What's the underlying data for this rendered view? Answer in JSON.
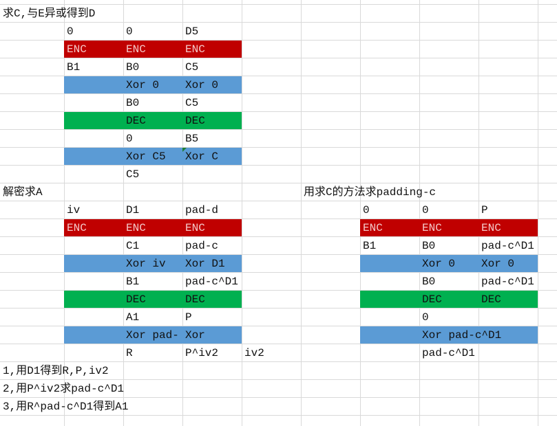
{
  "sheet": {
    "rows": [
      [
        "求C,与E异或得到D"
      ],
      [
        null,
        "0",
        "0",
        "D5"
      ],
      [
        null,
        "ENC",
        "ENC",
        "ENC"
      ],
      [
        null,
        "B1",
        "B0",
        "C5"
      ],
      [
        null,
        null,
        "Xor 0",
        "Xor 0"
      ],
      [
        null,
        null,
        "B0",
        "C5"
      ],
      [
        null,
        null,
        "DEC",
        "DEC"
      ],
      [
        null,
        null,
        "0",
        "B5"
      ],
      [
        null,
        null,
        "Xor C5",
        "Xor C"
      ],
      [
        null,
        null,
        "C5"
      ],
      [
        "解密求A",
        null,
        null,
        null,
        null,
        "用求C的方法求padding-c"
      ],
      [
        null,
        "iv",
        "D1",
        "pad-d",
        null,
        null,
        "0",
        "0",
        "P"
      ],
      [
        null,
        "ENC",
        "ENC",
        "ENC",
        null,
        null,
        "ENC",
        "ENC",
        "ENC"
      ],
      [
        null,
        null,
        "C1",
        "pad-c",
        null,
        null,
        "B1",
        "B0",
        "pad-c^D1"
      ],
      [
        null,
        null,
        "Xor iv",
        "Xor D1",
        null,
        null,
        null,
        "Xor 0",
        "Xor 0"
      ],
      [
        null,
        null,
        "B1",
        "pad-c^D1",
        null,
        null,
        null,
        "B0",
        "pad-c^D1"
      ],
      [
        null,
        null,
        "DEC",
        "DEC",
        null,
        null,
        null,
        "DEC",
        "DEC"
      ],
      [
        null,
        null,
        "A1",
        "P",
        null,
        null,
        null,
        "0"
      ],
      [
        null,
        null,
        "Xor pad-",
        "Xor",
        null,
        null,
        null,
        "Xor pad-c^D1"
      ],
      [
        null,
        null,
        "R",
        "P^iv2",
        "iv2",
        null,
        null,
        "pad-c^D1"
      ],
      [
        "1,用D1得到R,P,iv2"
      ],
      [
        "2,用P^iv2求pad-c^D1"
      ],
      [
        "3,用R^pad-c^D1得到A1"
      ]
    ]
  }
}
